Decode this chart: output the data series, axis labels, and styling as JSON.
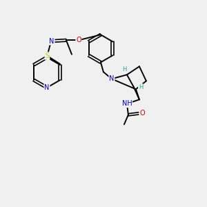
{
  "background_color": "#f0f0f0",
  "bond_color": "#000000",
  "atom_colors": {
    "N": "#0000cc",
    "O": "#cc0000",
    "S": "#cccc00",
    "H": "#2aa198",
    "C": "#000000"
  },
  "figsize": [
    3.0,
    3.0
  ],
  "dpi": 100
}
